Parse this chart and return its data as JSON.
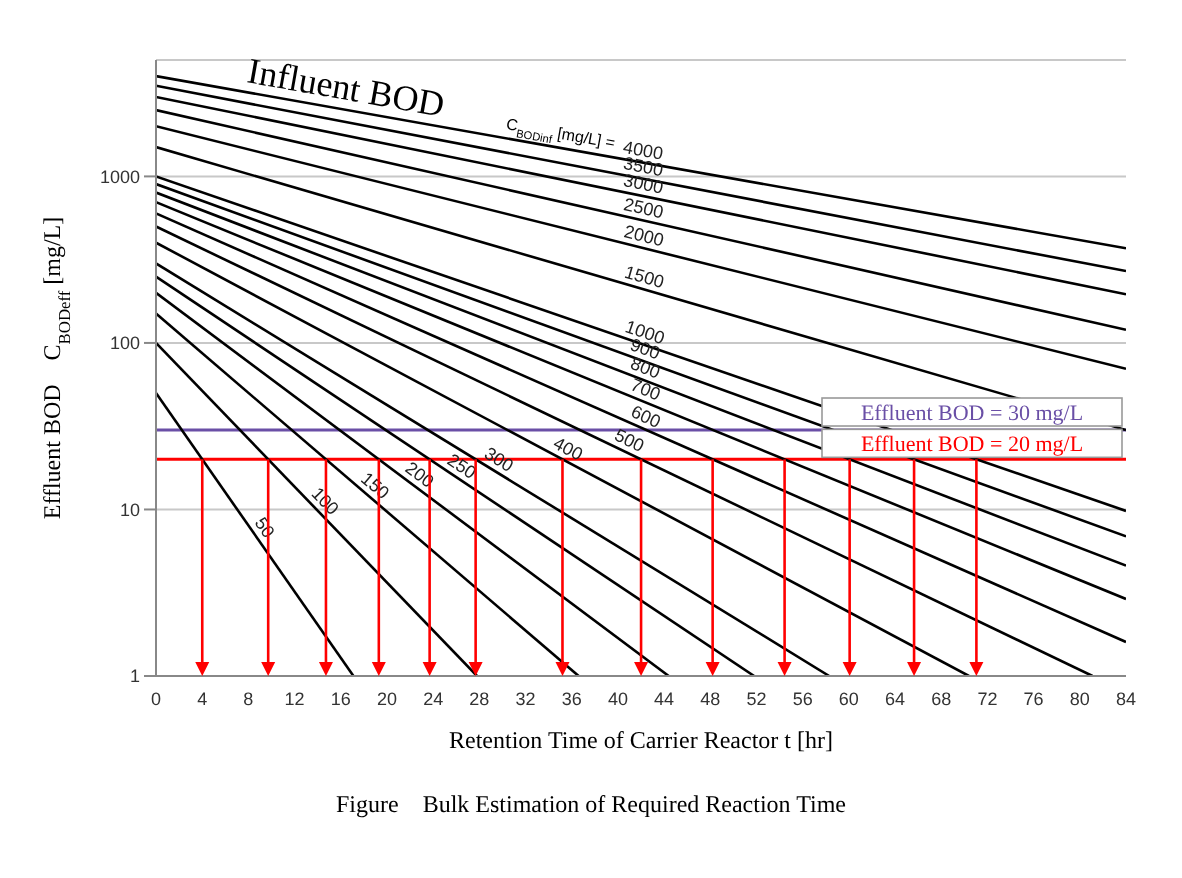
{
  "chart_data": {
    "type": "line",
    "title": "Figure　Bulk Estimation of Required Reaction Time",
    "xlabel": "Retention Time of Carrier Reactor  t  [hr]",
    "ylabel": "Effluent BOD　C$_{BODeff}$ [mg/L]",
    "annotations": [
      "Influent BOD",
      "C$_{BODinf}$ [mg/L] ="
    ],
    "log": "y",
    "grid": "y",
    "xlim": [
      0,
      84
    ],
    "xticks": [
      0,
      4,
      8,
      12,
      16,
      20,
      24,
      28,
      32,
      36,
      40,
      44,
      48,
      52,
      56,
      60,
      64,
      68,
      72,
      76,
      80,
      84
    ],
    "ylim": [
      1,
      5000
    ],
    "yticks": [
      1,
      10,
      100,
      1000
    ],
    "ref_lines": [
      {
        "axis": "y",
        "value": 30,
        "label": "Effluent BOD = 30 mg/L",
        "color": "#6a4fa6"
      },
      {
        "axis": "y",
        "value": 20,
        "label": "Effluent BOD = 20 mg/L",
        "color": "#ff0000"
      }
    ],
    "series": [
      {
        "name": "4000",
        "color": "#000000",
        "x": [
          0,
          84
        ],
        "values": [
          4000,
          370
        ]
      },
      {
        "name": "3500",
        "color": "#000000",
        "x": [
          0,
          84
        ],
        "values": [
          3500,
          270
        ]
      },
      {
        "name": "3000",
        "color": "#000000",
        "x": [
          0,
          84
        ],
        "values": [
          3000,
          196
        ]
      },
      {
        "name": "2500",
        "color": "#000000",
        "x": [
          0,
          84
        ],
        "values": [
          2500,
          120
        ]
      },
      {
        "name": "2000",
        "color": "#000000",
        "x": [
          0,
          84
        ],
        "values": [
          2000,
          70
        ]
      },
      {
        "name": "1500",
        "color": "#000000",
        "x": [
          0,
          84
        ],
        "values": [
          1500,
          30
        ]
      },
      {
        "name": "1000",
        "color": "#000000",
        "x": [
          0,
          84
        ],
        "values": [
          1000,
          9.8
        ]
      },
      {
        "name": "900",
        "color": "#000000",
        "x": [
          0,
          84
        ],
        "values": [
          900,
          6.9
        ]
      },
      {
        "name": "800",
        "color": "#000000",
        "x": [
          0,
          84
        ],
        "values": [
          800,
          4.6
        ]
      },
      {
        "name": "700",
        "color": "#000000",
        "x": [
          0,
          84
        ],
        "values": [
          700,
          2.9
        ]
      },
      {
        "name": "600",
        "color": "#000000",
        "x": [
          0,
          84
        ],
        "values": [
          600,
          1.6
        ]
      },
      {
        "name": "500",
        "color": "#000000",
        "x": [
          0,
          81.1
        ],
        "values": [
          500,
          1
        ]
      },
      {
        "name": "400",
        "color": "#000000",
        "x": [
          0,
          70.4
        ],
        "values": [
          400,
          1
        ]
      },
      {
        "name": "300",
        "color": "#000000",
        "x": [
          0,
          58.3
        ],
        "values": [
          300,
          1
        ]
      },
      {
        "name": "250",
        "color": "#000000",
        "x": [
          0,
          51.8
        ],
        "values": [
          250,
          1
        ]
      },
      {
        "name": "200",
        "color": "#000000",
        "x": [
          0,
          44.4
        ],
        "values": [
          200,
          1
        ]
      },
      {
        "name": "150",
        "color": "#000000",
        "x": [
          0,
          36.6
        ],
        "values": [
          150,
          1
        ]
      },
      {
        "name": "100",
        "color": "#000000",
        "x": [
          0,
          27.8
        ],
        "values": [
          100,
          1
        ]
      },
      {
        "name": "50",
        "color": "#000000",
        "x": [
          0,
          17.1
        ],
        "values": [
          50,
          1
        ]
      }
    ]
  }
}
